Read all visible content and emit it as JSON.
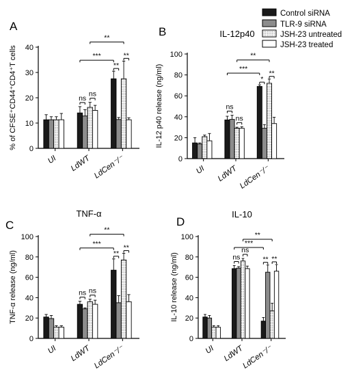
{
  "legend": {
    "placement": "top-right",
    "entries": [
      {
        "label": "Control siRNA",
        "fill": "#1a1a1a",
        "pattern": "solid"
      },
      {
        "label": "TLR-9 siRNA",
        "fill": "#8c8c8c",
        "pattern": "solid"
      },
      {
        "label": "JSH-23 untreated",
        "fill": "#ffffff",
        "pattern": "dots"
      },
      {
        "label": "JSH-23 treated",
        "fill": "#ffffff",
        "pattern": "plain"
      }
    ]
  },
  "chart_data": [
    {
      "type": "bar",
      "panel_letter": "A",
      "title": "",
      "ylabel": "% of  CFSE⁺CD44⁺CD4⁺T cells",
      "ylim": [
        0,
        40
      ],
      "yticks": [
        "0",
        "10",
        "20",
        "30",
        "40"
      ],
      "categories": [
        "UI",
        "LdWT",
        "LdCen⁻/⁻"
      ],
      "series": [
        {
          "name": "Control siRNA",
          "values": [
            11.3,
            14.0,
            27.5
          ],
          "errors": [
            2.0,
            2.5,
            3.0
          ]
        },
        {
          "name": "TLR-9 siRNA",
          "values": [
            11.3,
            12.8,
            11.4
          ],
          "errors": [
            1.2,
            2.5,
            0.8
          ]
        },
        {
          "name": "JSH-23 untreated",
          "values": [
            11.3,
            16.2,
            27.5
          ],
          "errors": [
            1.2,
            2.0,
            7.0
          ]
        },
        {
          "name": "JSH-23 treated",
          "values": [
            11.3,
            15.0,
            11.3
          ],
          "errors": [
            2.5,
            2.0,
            0.8
          ]
        }
      ],
      "annotations": [
        "***",
        "**",
        "ns",
        "ns",
        "**",
        "**"
      ]
    },
    {
      "type": "bar",
      "panel_letter": "B",
      "title": "IL-12p40",
      "ylabel": "IL-12 p40 release (ng/ml)",
      "ylim": [
        0,
        100
      ],
      "yticks": [
        "0",
        "20",
        "40",
        "60",
        "80",
        "100"
      ],
      "categories": [
        "UI",
        "LdWT",
        "LdCen⁻/⁻"
      ],
      "series": [
        {
          "name": "Control siRNA",
          "values": [
            15.0,
            37.0,
            69.0
          ],
          "errors": [
            5.0,
            3.5,
            1.5
          ]
        },
        {
          "name": "TLR-9 siRNA",
          "values": [
            14.0,
            37.5,
            29.0
          ],
          "errors": [
            1.0,
            4.0,
            3.5
          ]
        },
        {
          "name": "JSH-23 untreated",
          "values": [
            21.0,
            29.0,
            72.0
          ],
          "errors": [
            1.5,
            1.0,
            4.0
          ]
        },
        {
          "name": "JSH-23 treated",
          "values": [
            17.0,
            29.0,
            33.5
          ],
          "errors": [
            7.0,
            1.5,
            6.0
          ]
        }
      ],
      "annotations": [
        "***",
        "**",
        "ns",
        "ns",
        "*",
        "**"
      ]
    },
    {
      "type": "bar",
      "panel_letter": "C",
      "title": "TNF-α",
      "ylabel": "TNF-α release (ng/ml)",
      "ylim": [
        0,
        100
      ],
      "yticks": [
        "0",
        "20",
        "40",
        "60",
        "80",
        "100"
      ],
      "categories": [
        "UI",
        "LdWT",
        "LdCen⁻/⁻"
      ],
      "series": [
        {
          "name": "Control siRNA",
          "values": [
            21.0,
            33.5,
            67.0
          ],
          "errors": [
            2.5,
            3.0,
            11.0
          ]
        },
        {
          "name": "TLR-9 siRNA",
          "values": [
            19.5,
            29.0,
            35.0
          ],
          "errors": [
            3.0,
            1.0,
            7.0
          ]
        },
        {
          "name": "JSH-23 untreated",
          "values": [
            11.0,
            36.0,
            77.0
          ],
          "errors": [
            1.5,
            2.5,
            6.5
          ]
        },
        {
          "name": "JSH-23 treated",
          "values": [
            11.0,
            33.5,
            36.0
          ],
          "errors": [
            1.5,
            4.0,
            7.0
          ]
        }
      ],
      "annotations": [
        "***",
        "**",
        "ns",
        "ns",
        "**",
        "**"
      ]
    },
    {
      "type": "bar",
      "panel_letter": "D",
      "title": "IL-10",
      "ylabel": "IL-10 release (ng/ml)",
      "ylim": [
        0,
        100
      ],
      "yticks": [
        "0",
        "20",
        "40",
        "60",
        "80",
        "100"
      ],
      "categories": [
        "UI",
        "LdWT",
        "LdCen⁻/⁻"
      ],
      "series": [
        {
          "name": "Control siRNA",
          "values": [
            21.0,
            68.5,
            17.0
          ],
          "errors": [
            2.5,
            3.0,
            3.5
          ]
        },
        {
          "name": "TLR-9 siRNA",
          "values": [
            20.0,
            69.0,
            65.0
          ],
          "errors": [
            2.5,
            1.5,
            7.0
          ]
        },
        {
          "name": "JSH-23 untreated",
          "values": [
            11.0,
            76.0,
            27.0
          ],
          "errors": [
            1.5,
            2.5,
            7.5
          ]
        },
        {
          "name": "JSH-23 treated",
          "values": [
            11.0,
            68.5,
            66.0
          ],
          "errors": [
            1.5,
            2.5,
            6.5
          ]
        }
      ],
      "annotations": [
        "***",
        "**",
        "ns",
        "ns",
        "**",
        "**"
      ]
    }
  ]
}
